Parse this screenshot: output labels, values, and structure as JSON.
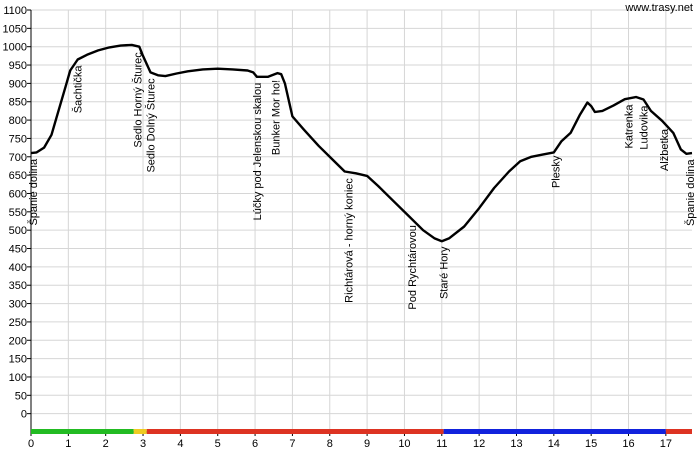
{
  "watermark": "www.trasy.net",
  "chart_data": {
    "type": "line",
    "title": "",
    "xlabel": "",
    "ylabel": "",
    "grid": true,
    "xlim": [
      0,
      17.7
    ],
    "ylim": [
      -50,
      1100
    ],
    "x_ticks": [
      0,
      1,
      2,
      3,
      4,
      5,
      6,
      7,
      8,
      9,
      10,
      11,
      12,
      13,
      14,
      15,
      16,
      17
    ],
    "y_ticks": [
      0,
      50,
      100,
      150,
      200,
      250,
      300,
      350,
      400,
      450,
      500,
      550,
      600,
      650,
      700,
      750,
      800,
      850,
      900,
      950,
      1000,
      1050,
      1100
    ],
    "series": [
      {
        "points": [
          [
            0.0,
            710
          ],
          [
            0.15,
            712
          ],
          [
            0.35,
            725
          ],
          [
            0.55,
            760
          ],
          [
            0.75,
            830
          ],
          [
            0.95,
            900
          ],
          [
            1.05,
            935
          ],
          [
            1.25,
            965
          ],
          [
            1.5,
            978
          ],
          [
            1.8,
            990
          ],
          [
            2.1,
            998
          ],
          [
            2.4,
            1003
          ],
          [
            2.7,
            1005
          ],
          [
            2.9,
            1000
          ],
          [
            3.0,
            975
          ],
          [
            3.2,
            930
          ],
          [
            3.4,
            922
          ],
          [
            3.6,
            920
          ],
          [
            3.9,
            927
          ],
          [
            4.2,
            933
          ],
          [
            4.6,
            938
          ],
          [
            5.0,
            940
          ],
          [
            5.4,
            938
          ],
          [
            5.8,
            935
          ],
          [
            5.95,
            930
          ],
          [
            6.05,
            918
          ],
          [
            6.35,
            918
          ],
          [
            6.6,
            928
          ],
          [
            6.7,
            925
          ],
          [
            6.8,
            900
          ],
          [
            7.0,
            810
          ],
          [
            7.3,
            775
          ],
          [
            7.7,
            730
          ],
          [
            8.1,
            690
          ],
          [
            8.4,
            660
          ],
          [
            8.7,
            655
          ],
          [
            9.0,
            648
          ],
          [
            9.3,
            620
          ],
          [
            9.7,
            580
          ],
          [
            10.1,
            540
          ],
          [
            10.5,
            500
          ],
          [
            10.8,
            478
          ],
          [
            11.0,
            470
          ],
          [
            11.2,
            478
          ],
          [
            11.6,
            510
          ],
          [
            12.0,
            560
          ],
          [
            12.4,
            615
          ],
          [
            12.8,
            660
          ],
          [
            13.1,
            688
          ],
          [
            13.4,
            700
          ],
          [
            13.7,
            706
          ],
          [
            14.0,
            712
          ],
          [
            14.2,
            742
          ],
          [
            14.45,
            765
          ],
          [
            14.7,
            815
          ],
          [
            14.9,
            848
          ],
          [
            15.0,
            838
          ],
          [
            15.1,
            822
          ],
          [
            15.3,
            825
          ],
          [
            15.6,
            840
          ],
          [
            15.9,
            857
          ],
          [
            16.2,
            863
          ],
          [
            16.4,
            856
          ],
          [
            16.6,
            825
          ],
          [
            16.9,
            798
          ],
          [
            17.2,
            765
          ],
          [
            17.4,
            720
          ],
          [
            17.55,
            708
          ],
          [
            17.7,
            710
          ]
        ]
      }
    ],
    "annotations": [
      {
        "text": "Španie dolina",
        "x": 0.05
      },
      {
        "text": "Šachtička",
        "x": 1.25
      },
      {
        "text": "Sedlo Horný Šturec",
        "x": 2.85
      },
      {
        "text": "Sedlo Dolný Šturec",
        "x": 3.2
      },
      {
        "text": "Lúčky pod Jelenskou skalou",
        "x": 6.05
      },
      {
        "text": "Bunker Mor ho!",
        "x": 6.55
      },
      {
        "text": "Richtárová - horný koniec",
        "x": 8.5
      },
      {
        "text": "Pod Rychtárovou",
        "x": 10.2
      },
      {
        "text": "Staré Hory",
        "x": 11.05
      },
      {
        "text": "Plesky",
        "x": 14.05
      },
      {
        "text": "Katrenka",
        "x": 16.0
      },
      {
        "text": "Ludovika",
        "x": 16.4
      },
      {
        "text": "Alžbetka",
        "x": 16.95
      },
      {
        "text": "Španie dolina",
        "x": 17.65
      }
    ],
    "segments": [
      {
        "from": 0.0,
        "to": 2.75,
        "color": "#22bb22"
      },
      {
        "from": 2.75,
        "to": 3.1,
        "color": "#eecc22"
      },
      {
        "from": 3.1,
        "to": 11.05,
        "color": "#dd3322"
      },
      {
        "from": 11.05,
        "to": 17.0,
        "color": "#1122dd"
      },
      {
        "from": 17.0,
        "to": 17.7,
        "color": "#dd3322"
      }
    ]
  }
}
